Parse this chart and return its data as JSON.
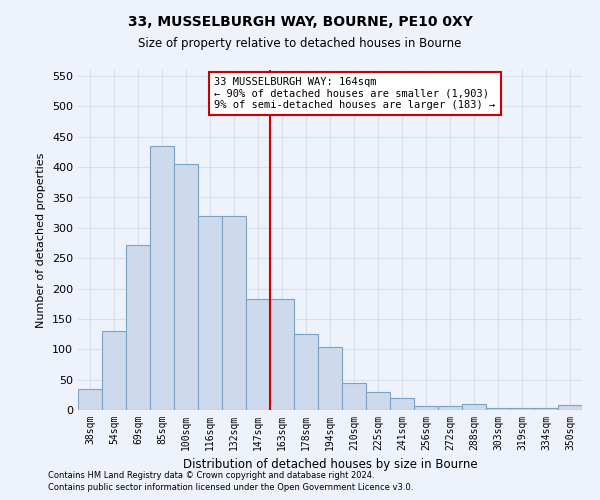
{
  "title1": "33, MUSSELBURGH WAY, BOURNE, PE10 0XY",
  "title2": "Size of property relative to detached houses in Bourne",
  "xlabel": "Distribution of detached houses by size in Bourne",
  "ylabel": "Number of detached properties",
  "footer1": "Contains HM Land Registry data © Crown copyright and database right 2024.",
  "footer2": "Contains public sector information licensed under the Open Government Licence v3.0.",
  "annotation_title": "33 MUSSELBURGH WAY: 164sqm",
  "annotation_line1": "← 90% of detached houses are smaller (1,903)",
  "annotation_line2": "9% of semi-detached houses are larger (183) →",
  "vline_x": 8,
  "bar_values": [
    35,
    130,
    272,
    435,
    405,
    320,
    320,
    183,
    183,
    125,
    103,
    44,
    30,
    20,
    7,
    7,
    10,
    4,
    4,
    3,
    8
  ],
  "categories": [
    "38sqm",
    "54sqm",
    "69sqm",
    "85sqm",
    "100sqm",
    "116sqm",
    "132sqm",
    "147sqm",
    "163sqm",
    "178sqm",
    "194sqm",
    "210sqm",
    "225sqm",
    "241sqm",
    "256sqm",
    "272sqm",
    "288sqm",
    "303sqm",
    "319sqm",
    "334sqm",
    "350sqm"
  ],
  "bar_color": "#cddaeb",
  "bar_edge_color": "#7ba3c8",
  "vline_color": "#cc0000",
  "annotation_box_color": "#cc0000",
  "ylim": [
    0,
    560
  ],
  "yticks": [
    0,
    50,
    100,
    150,
    200,
    250,
    300,
    350,
    400,
    450,
    500,
    550
  ],
  "bg_color": "#eef2fb",
  "grid_color": "#d8dff0"
}
